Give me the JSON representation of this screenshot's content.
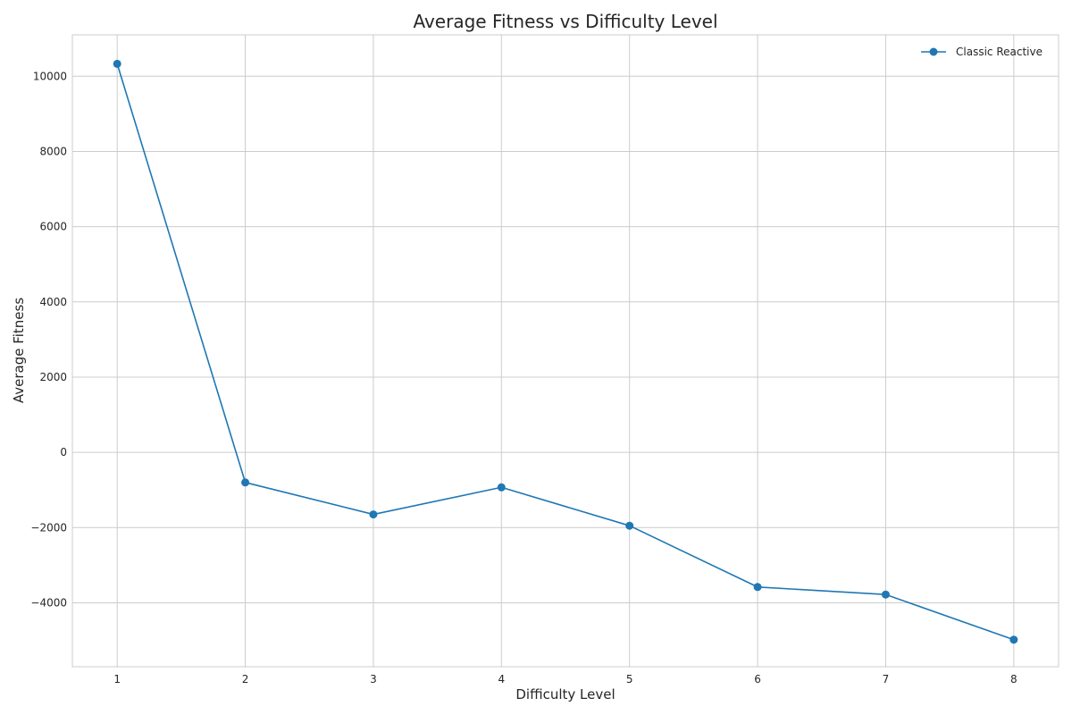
{
  "chart_data": {
    "type": "line",
    "title": "Average Fitness vs Difficulty Level",
    "xlabel": "Difficulty Level",
    "ylabel": "Average Fitness",
    "xlim": [
      0.65,
      8.35
    ],
    "ylim": [
      -5700,
      11100
    ],
    "x_ticks": [
      1,
      2,
      3,
      4,
      5,
      6,
      7,
      8
    ],
    "y_ticks": [
      -4000,
      -2000,
      0,
      2000,
      4000,
      6000,
      8000,
      10000
    ],
    "grid": true,
    "legend_position": "top-right",
    "series": [
      {
        "name": "Classic Reactive",
        "color": "#1f77b4",
        "marker": "circle",
        "x": [
          1,
          2,
          3,
          4,
          5,
          6,
          7,
          8
        ],
        "y": [
          10330,
          -800,
          -1650,
          -930,
          -1950,
          -3580,
          -3780,
          -4980
        ]
      }
    ]
  }
}
